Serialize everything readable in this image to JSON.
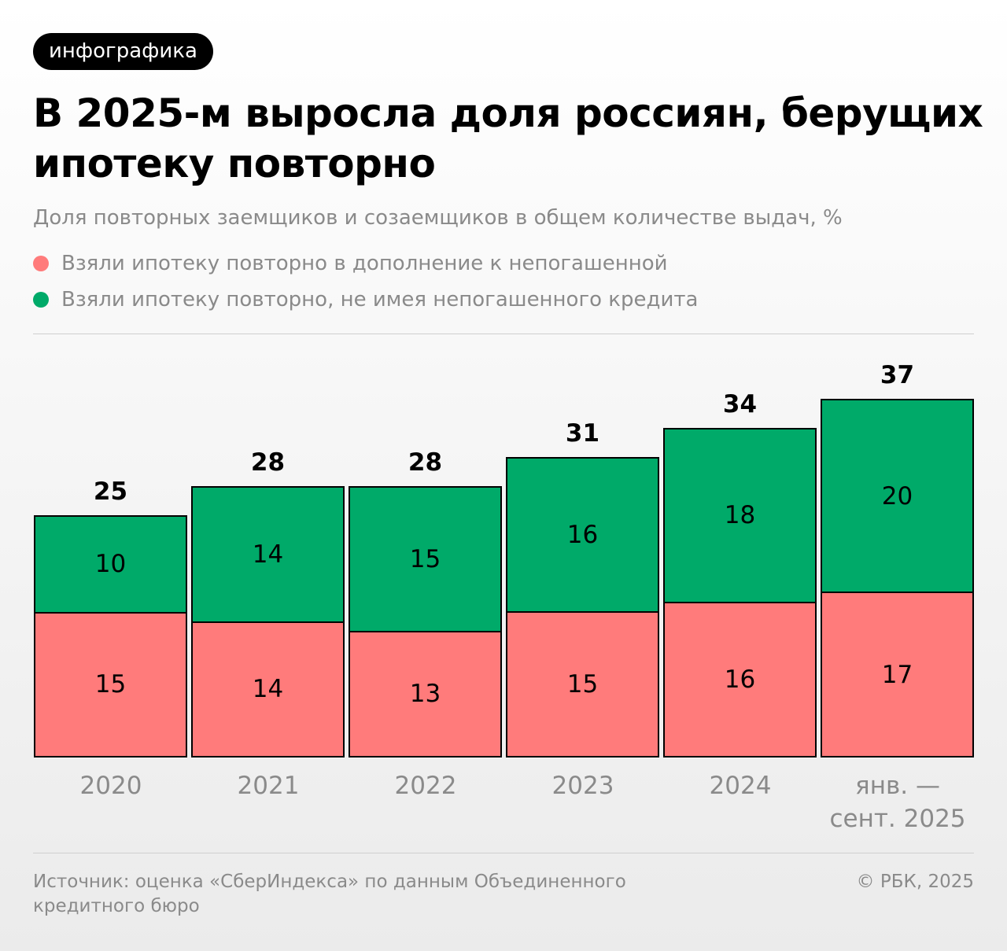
{
  "badge": "инфографика",
  "chart_data": {
    "type": "bar",
    "stacked": true,
    "title": "В 2025-м выросла доля россиян, берущих ипотеку повторно",
    "subtitle": "Доля повторных заемщиков и созаемщиков в общем количестве выдач, %",
    "categories": [
      "2020",
      "2021",
      "2022",
      "2023",
      "2024",
      "янв. — сент. 2025"
    ],
    "series": [
      {
        "name": "Взяли ипотеку повторно в дополнение к непогашенной",
        "color": "#ff7b7b",
        "values": [
          15,
          14,
          13,
          15,
          16,
          17
        ]
      },
      {
        "name": "Взяли ипотеку повторно, не имея непогашенного кредита",
        "color": "#00aa69",
        "values": [
          10,
          14,
          15,
          16,
          18,
          20
        ]
      }
    ],
    "totals": [
      25,
      28,
      28,
      31,
      34,
      37
    ]
  },
  "source": "Источник: оценка «СберИндекса» по данным Объединенного кредитного бюро",
  "copyright": "© РБК, 2025"
}
